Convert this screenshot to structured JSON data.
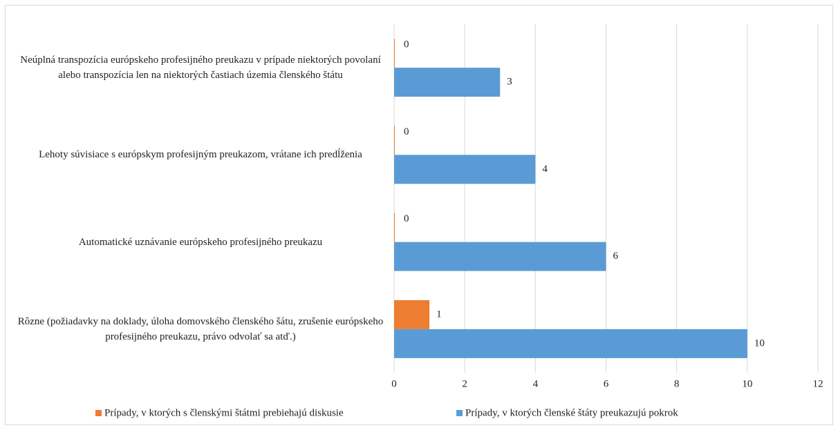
{
  "chart_data": {
    "type": "bar",
    "orientation": "horizontal",
    "categories": [
      "Neúplná transpozícia európskeho profesijného preukazu v prípade niektorých povolaní alebo transpozícia len na niektorých častiach územia členského štátu",
      "Lehoty súvisiace s európskym profesijným preukazom, vrátane ich predĺženia",
      "Automatické uznávanie európskeho profesijného preukazu",
      "Rôzne (požiadavky na doklady, úloha domovského členského šátu, zrušenie európskeho profesijného preukazu, právo odvolať sa atď.)"
    ],
    "series": [
      {
        "name": "Prípady, v ktorých s členskými štátmi prebiehajú diskusie",
        "color": "#ed7d31",
        "values": [
          0,
          0,
          0,
          1
        ]
      },
      {
        "name": "Prípady, v ktorých členské štáty preukazujú pokrok",
        "color": "#5b9bd5",
        "values": [
          3,
          4,
          6,
          10
        ]
      }
    ],
    "xlim": [
      0,
      12
    ],
    "xticks": [
      0,
      2,
      4,
      6,
      8,
      10,
      12
    ],
    "grid": true,
    "legend": "bottom"
  }
}
